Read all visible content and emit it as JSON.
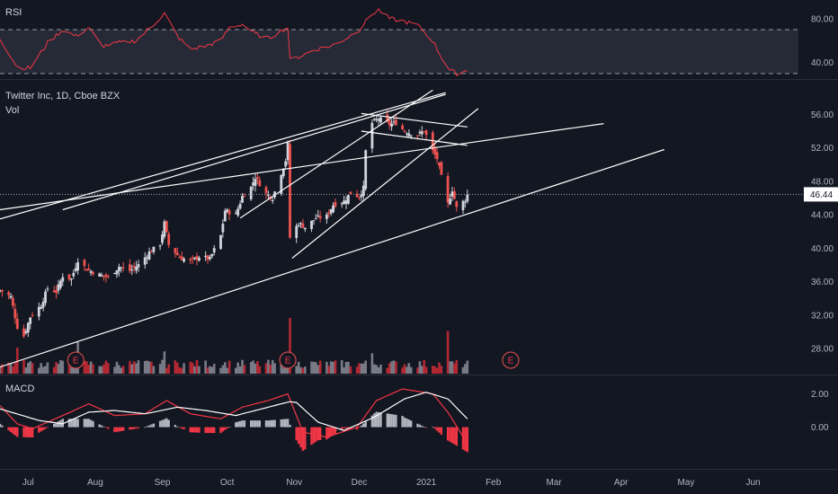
{
  "header": {
    "rsi_label": "RSI",
    "symbol_label": "Twitter Inc, 1D, Cboe BZX",
    "vol_label": "Vol",
    "macd_label": "MACD"
  },
  "colors": {
    "background": "#131722",
    "up": "#d1d4dc",
    "down": "#ef5350",
    "volume_up": "#787b86",
    "volume_down": "#b22833",
    "rsi_line": "#f23645",
    "rsi_band": "#2a2e39",
    "macd_line": "#f23645",
    "signal_line": "#ffffff",
    "hist_pos": "#b2b5be",
    "hist_neg": "#f23645",
    "trendline": "#ffffff",
    "price_tag": "#ffffff"
  },
  "chart_data": {
    "type": "candlestick",
    "title": "Twitter Inc, 1D, Cboe BZX",
    "last_price": 46.44,
    "last_price_label": "46.44",
    "price_axis": {
      "ylim": [
        25.0,
        59.8
      ],
      "ticks": [
        28.0,
        32.0,
        36.0,
        40.0,
        44.0,
        48.0,
        52.0,
        56.0
      ],
      "tick_labels": [
        "28.00",
        "32.00",
        "36.00",
        "40.00",
        "44.00",
        "48.00",
        "52.00",
        "56.00"
      ]
    },
    "rsi_axis": {
      "ylim": [
        25,
        97
      ],
      "ticks": [
        40,
        80
      ],
      "tick_labels": [
        "40.00",
        "80.00"
      ],
      "band": [
        30,
        70
      ]
    },
    "macd_axis": {
      "ylim": [
        -2.4,
        3.0
      ],
      "ticks": [
        0,
        2
      ],
      "tick_labels": [
        "0.00",
        "2.00"
      ]
    },
    "x_axis": {
      "range": [
        "2020-06-18",
        "2021-06-22"
      ],
      "ticks": [
        "2020-07-01",
        "2020-08-01",
        "2020-09-01",
        "2020-10-01",
        "2020-11-01",
        "2020-12-01",
        "2021-01-01",
        "2021-02-01",
        "2021-03-01",
        "2021-04-01",
        "2021-05-01",
        "2021-06-01"
      ],
      "tick_labels": [
        "Jul",
        "Aug",
        "Sep",
        "Oct",
        "Nov",
        "Dec",
        "2021",
        "Feb",
        "Mar",
        "Apr",
        "May",
        "Jun"
      ]
    },
    "earnings_markers": [
      {
        "date": "2020-07-23",
        "label": "E"
      },
      {
        "date": "2020-10-29",
        "label": "E"
      },
      {
        "date": "2021-02-09",
        "label": "E"
      }
    ],
    "ohlc_daily": {
      "start": "2020-06-18",
      "interval": "1D",
      "weekends_excluded": true,
      "close_anchors": [
        [
          "2020-06-18",
          35.0
        ],
        [
          "2020-06-23",
          34.2
        ],
        [
          "2020-06-26",
          30.6
        ],
        [
          "2020-06-29",
          29.5
        ],
        [
          "2020-07-02",
          31.8
        ],
        [
          "2020-07-07",
          33.2
        ],
        [
          "2020-07-10",
          35.2
        ],
        [
          "2020-07-14",
          34.8
        ],
        [
          "2020-07-17",
          36.7
        ],
        [
          "2020-07-21",
          36.3
        ],
        [
          "2020-07-24",
          38.6
        ],
        [
          "2020-07-28",
          37.5
        ],
        [
          "2020-08-03",
          36.8
        ],
        [
          "2020-08-07",
          36.5
        ],
        [
          "2020-08-12",
          37.8
        ],
        [
          "2020-08-17",
          37.3
        ],
        [
          "2020-08-21",
          38.0
        ],
        [
          "2020-08-26",
          39.5
        ],
        [
          "2020-08-31",
          40.5
        ],
        [
          "2020-09-02",
          43.0
        ],
        [
          "2020-09-04",
          40.4
        ],
        [
          "2020-09-09",
          38.9
        ],
        [
          "2020-09-14",
          38.4
        ],
        [
          "2020-09-18",
          39.0
        ],
        [
          "2020-09-23",
          38.7
        ],
        [
          "2020-09-28",
          41.5
        ],
        [
          "2020-09-30",
          44.5
        ],
        [
          "2020-10-05",
          44.0
        ],
        [
          "2020-10-08",
          46.2
        ],
        [
          "2020-10-12",
          47.3
        ],
        [
          "2020-10-14",
          48.5
        ],
        [
          "2020-10-19",
          46.5
        ],
        [
          "2020-10-22",
          46.0
        ],
        [
          "2020-10-26",
          49.0
        ],
        [
          "2020-10-28",
          50.5
        ],
        [
          "2020-10-29",
          52.4
        ],
        [
          "2020-10-30",
          41.3
        ],
        [
          "2020-11-03",
          43.0
        ],
        [
          "2020-11-06",
          42.5
        ],
        [
          "2020-11-11",
          43.6
        ],
        [
          "2020-11-16",
          43.8
        ],
        [
          "2020-11-19",
          45.2
        ],
        [
          "2020-11-24",
          45.6
        ],
        [
          "2020-11-27",
          46.6
        ],
        [
          "2020-12-01",
          46.2
        ],
        [
          "2020-12-03",
          47.2
        ],
        [
          "2020-12-04",
          51.6
        ],
        [
          "2020-12-07",
          55.0
        ],
        [
          "2020-12-10",
          55.5
        ],
        [
          "2020-12-15",
          54.8
        ],
        [
          "2020-12-18",
          55.0
        ],
        [
          "2020-12-22",
          54.0
        ],
        [
          "2020-12-28",
          53.5
        ],
        [
          "2020-12-31",
          54.1
        ],
        [
          "2021-01-04",
          51.6
        ],
        [
          "2021-01-06",
          50.7
        ],
        [
          "2021-01-08",
          48.5
        ],
        [
          "2021-01-11",
          45.3
        ],
        [
          "2021-01-13",
          47.0
        ],
        [
          "2021-01-15",
          44.8
        ],
        [
          "2021-01-19",
          45.8
        ],
        [
          "2021-01-20",
          46.44
        ]
      ]
    },
    "rsi_anchors": [
      [
        "2020-06-18",
        62
      ],
      [
        "2020-06-26",
        36
      ],
      [
        "2020-07-02",
        35
      ],
      [
        "2020-07-10",
        58
      ],
      [
        "2020-07-17",
        70
      ],
      [
        "2020-07-23",
        64
      ],
      [
        "2020-07-29",
        72
      ],
      [
        "2020-08-04",
        55
      ],
      [
        "2020-08-12",
        58
      ],
      [
        "2020-08-20",
        60
      ],
      [
        "2020-08-27",
        73
      ],
      [
        "2020-09-02",
        85
      ],
      [
        "2020-09-08",
        64
      ],
      [
        "2020-09-14",
        52
      ],
      [
        "2020-09-21",
        55
      ],
      [
        "2020-09-28",
        60
      ],
      [
        "2020-10-02",
        72
      ],
      [
        "2020-10-08",
        75
      ],
      [
        "2020-10-14",
        66
      ],
      [
        "2020-10-20",
        62
      ],
      [
        "2020-10-27",
        70
      ],
      [
        "2020-10-29",
        72
      ],
      [
        "2020-10-30",
        42
      ],
      [
        "2020-11-04",
        46
      ],
      [
        "2020-11-11",
        52
      ],
      [
        "2020-11-18",
        55
      ],
      [
        "2020-11-25",
        62
      ],
      [
        "2020-12-01",
        70
      ],
      [
        "2020-12-07",
        84
      ],
      [
        "2020-12-10",
        88
      ],
      [
        "2020-12-15",
        80
      ],
      [
        "2020-12-21",
        78
      ],
      [
        "2020-12-28",
        74
      ],
      [
        "2021-01-04",
        60
      ],
      [
        "2021-01-08",
        45
      ],
      [
        "2021-01-12",
        33
      ],
      [
        "2021-01-15",
        30
      ],
      [
        "2021-01-20",
        33
      ]
    ],
    "macd_anchors": [
      [
        "2020-06-18",
        1.3
      ],
      [
        "2020-06-26",
        0.2
      ],
      [
        "2020-07-03",
        -0.1
      ],
      [
        "2020-07-17",
        0.7
      ],
      [
        "2020-07-29",
        1.4
      ],
      [
        "2020-08-10",
        0.7
      ],
      [
        "2020-08-24",
        0.8
      ],
      [
        "2020-09-03",
        1.6
      ],
      [
        "2020-09-14",
        0.8
      ],
      [
        "2020-09-28",
        0.5
      ],
      [
        "2020-10-08",
        1.2
      ],
      [
        "2020-10-20",
        1.6
      ],
      [
        "2020-10-29",
        2.0
      ],
      [
        "2020-11-05",
        -0.3
      ],
      [
        "2020-11-16",
        -0.6
      ],
      [
        "2020-11-30",
        0.0
      ],
      [
        "2020-12-09",
        1.6
      ],
      [
        "2020-12-21",
        2.3
      ],
      [
        "2021-01-04",
        2.0
      ],
      [
        "2021-01-11",
        0.9
      ],
      [
        "2021-01-20",
        -1.0
      ]
    ],
    "signal_anchors": [
      [
        "2020-06-18",
        1.1
      ],
      [
        "2020-07-06",
        0.4
      ],
      [
        "2020-07-17",
        0.2
      ],
      [
        "2020-07-29",
        0.9
      ],
      [
        "2020-08-10",
        1.0
      ],
      [
        "2020-08-24",
        0.8
      ],
      [
        "2020-09-08",
        1.2
      ],
      [
        "2020-09-21",
        1.0
      ],
      [
        "2020-10-05",
        0.7
      ],
      [
        "2020-10-20",
        1.2
      ],
      [
        "2020-11-01",
        1.6
      ],
      [
        "2020-11-12",
        0.3
      ],
      [
        "2020-11-24",
        -0.2
      ],
      [
        "2020-12-08",
        0.6
      ],
      [
        "2020-12-22",
        1.7
      ],
      [
        "2021-01-01",
        2.1
      ],
      [
        "2021-01-11",
        1.7
      ],
      [
        "2021-01-20",
        0.5
      ]
    ],
    "volume_spikes": [
      {
        "date": "2020-06-26",
        "value": 28
      },
      {
        "date": "2020-07-24",
        "value": 34
      },
      {
        "date": "2020-09-02",
        "value": 24
      },
      {
        "date": "2020-10-30",
        "value": 60
      },
      {
        "date": "2020-12-07",
        "value": 22
      },
      {
        "date": "2021-01-11",
        "value": 46
      }
    ],
    "trendlines": [
      {
        "from": [
          "2020-06-18",
          25.8
        ],
        "to": [
          "2021-04-21",
          51.8
        ]
      },
      {
        "from": [
          "2020-06-18",
          43.5
        ],
        "to": [
          "2021-01-10",
          58.6
        ]
      },
      {
        "from": [
          "2020-06-18",
          44.6
        ],
        "to": [
          "2021-03-24",
          54.9
        ]
      },
      {
        "from": [
          "2020-10-07",
          43.6
        ],
        "to": [
          "2021-01-04",
          58.9
        ]
      },
      {
        "from": [
          "2020-10-31",
          38.8
        ],
        "to": [
          "2021-01-25",
          56.7
        ]
      },
      {
        "from": [
          "2020-07-17",
          44.6
        ],
        "to": [
          "2021-01-10",
          58.4
        ]
      },
      {
        "from": [
          "2020-12-02",
          56.1
        ],
        "to": [
          "2021-01-20",
          54.5
        ]
      },
      {
        "from": [
          "2020-12-02",
          54.0
        ],
        "to": [
          "2021-01-20",
          52.3
        ]
      }
    ]
  }
}
